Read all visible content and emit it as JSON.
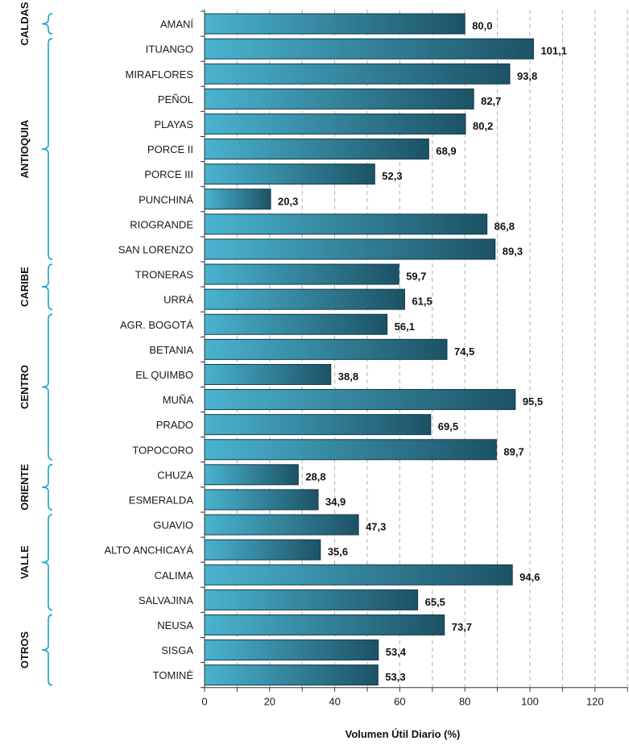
{
  "chart_data": {
    "type": "bar",
    "orientation": "horizontal",
    "xlabel": "Volumen Útil Diario (%)",
    "xlim": [
      0,
      130
    ],
    "xticks": [
      0,
      20,
      40,
      60,
      80,
      100,
      120
    ],
    "grid": "vertical dashed",
    "categories": [
      "AMANÍ",
      "ITUANGO",
      "MIRAFLORES",
      "PEÑOL",
      "PLAYAS",
      "PORCE II",
      "PORCE III",
      "PUNCHINÁ",
      "RIOGRANDE",
      "SAN LORENZO",
      "TRONERAS",
      "URRÁ",
      "AGR. BOGOTÁ",
      "BETANIA",
      "EL QUIMBO",
      "MUÑA",
      "PRADO",
      "TOPOCORO",
      "CHUZA",
      "ESMERALDA",
      "GUAVIO",
      "ALTO ANCHICAYÁ",
      "CALIMA",
      "SALVAJINA",
      "NEUSA",
      "SISGA",
      "TOMINÉ"
    ],
    "values": [
      80.0,
      101.1,
      93.8,
      82.7,
      80.2,
      68.9,
      52.3,
      20.3,
      86.8,
      89.3,
      59.7,
      61.5,
      56.1,
      74.5,
      38.8,
      95.5,
      69.5,
      89.7,
      28.8,
      34.9,
      47.3,
      35.6,
      94.6,
      65.5,
      73.7,
      53.4,
      53.3
    ],
    "value_labels": [
      "80,0",
      "101,1",
      "93,8",
      "82,7",
      "80,2",
      "68,9",
      "52,3",
      "20,3",
      "86,8",
      "89,3",
      "59,7",
      "61,5",
      "56,1",
      "74,5",
      "38,8",
      "95,5",
      "69,5",
      "89,7",
      "28,8",
      "34,9",
      "47,3",
      "35,6",
      "94,6",
      "65,5",
      "73,7",
      "53,4",
      "53,3"
    ],
    "groups": [
      {
        "name": "CALDAS",
        "start": 0,
        "end": 0
      },
      {
        "name": "ANTIOQUIA",
        "start": 1,
        "end": 9
      },
      {
        "name": "CARIBE",
        "start": 10,
        "end": 11
      },
      {
        "name": "CENTRO",
        "start": 12,
        "end": 17
      },
      {
        "name": "ORIENTE",
        "start": 18,
        "end": 19
      },
      {
        "name": "VALLE",
        "start": 20,
        "end": 23
      },
      {
        "name": "OTROS",
        "start": 24,
        "end": 26
      }
    ],
    "colors": {
      "bar_light": "#4ab3cf",
      "bar_dark": "#1d5265",
      "bracket": "#1ba3c6",
      "grid": "#b0b0b0",
      "axis": "#333333"
    }
  }
}
